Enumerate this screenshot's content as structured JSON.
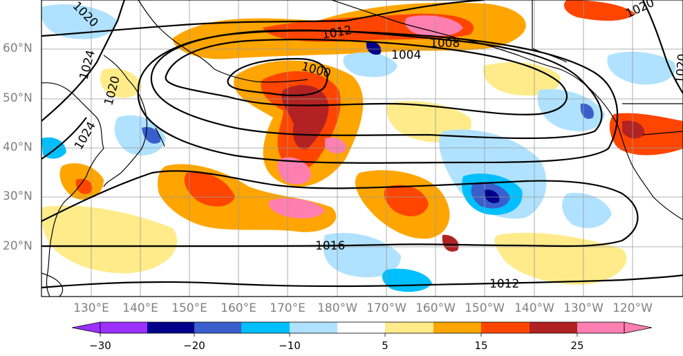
{
  "map": {
    "latitude_labels": [
      "60°N",
      "50°N",
      "40°N",
      "30°N",
      "20°N"
    ],
    "longitude_labels": [
      "130°E",
      "140°E",
      "150°E",
      "160°E",
      "170°E",
      "180°W",
      "170°W",
      "160°W",
      "150°W",
      "140°W",
      "130°W",
      "120°W"
    ],
    "isobar_labels": [
      "1020",
      "1024",
      "1020",
      "1024",
      "1012",
      "1004",
      "1008",
      "1000",
      "1016",
      "1012",
      "1020",
      "1020"
    ],
    "colors": {
      "bins": [
        "#9b30ff",
        "#00008b",
        "#3a5fcd",
        "#00bfff",
        "#b0e2ff",
        "#ffffff",
        "#ffeb8a",
        "#ffa500",
        "#ff4500",
        "#b22222",
        "#ff7fb0"
      ],
      "contour": "#000000",
      "coastline": "#000000",
      "grid": "#999999"
    }
  },
  "colorbar": {
    "tick_labels": [
      "−30",
      "−20",
      "−10",
      "5",
      "15",
      "25"
    ],
    "bins": [
      "#9b30ff",
      "#00008b",
      "#3a5fcd",
      "#00bfff",
      "#b0e2ff",
      "#ffffff",
      "#ffeb8a",
      "#ffa500",
      "#ff4500",
      "#b22222",
      "#ff7fb0"
    ],
    "extend": "both"
  }
}
